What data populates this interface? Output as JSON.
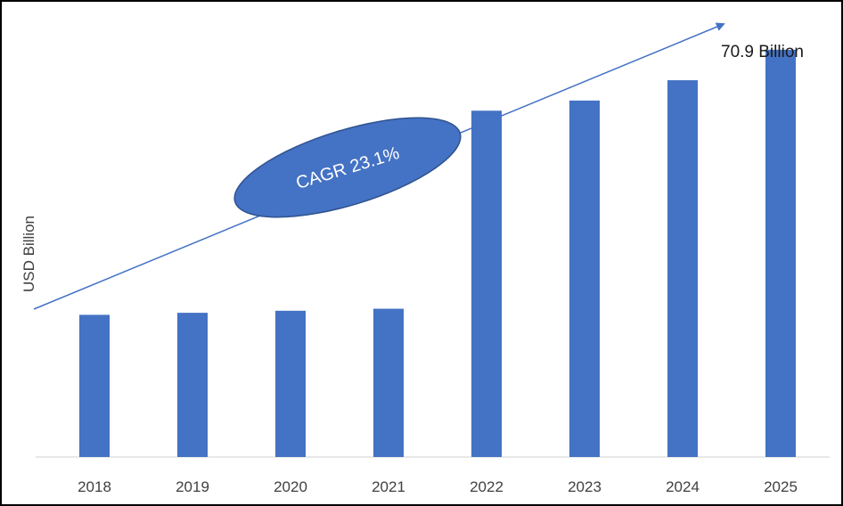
{
  "chart_data": {
    "type": "bar",
    "categories": [
      "2018",
      "2019",
      "2020",
      "2021",
      "2022",
      "2023",
      "2024",
      "2025"
    ],
    "values": [
      14.0,
      14.2,
      14.4,
      14.6,
      34.1,
      35.1,
      37.1,
      40.1
    ],
    "ylabel": "USD Billion",
    "ylim": [
      0,
      45
    ],
    "grid": false,
    "legend": "none",
    "bar_color": "#4472c4",
    "annotations": {
      "end_value": "70.9 Billion",
      "cagr": "CAGR 23.1%",
      "trend_color": "#4472c4"
    }
  }
}
